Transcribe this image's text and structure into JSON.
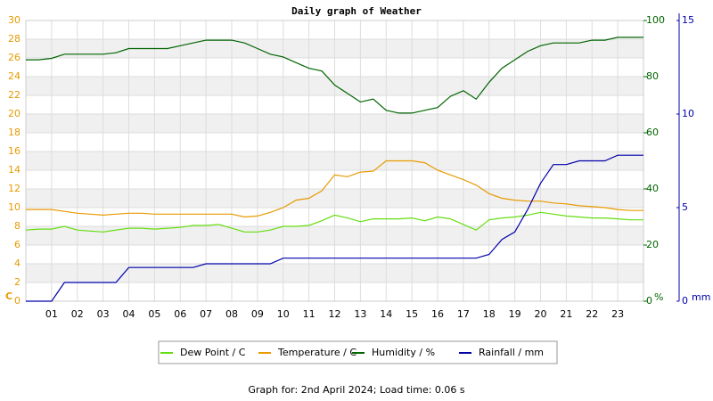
{
  "chart_data": {
    "type": "line",
    "title": "Daily graph of Weather",
    "footer": "Graph for: 2nd April 2024; Load time: 0.06 s",
    "x": [
      0,
      0.5,
      1,
      1.5,
      2,
      2.5,
      3,
      3.5,
      4,
      4.5,
      5,
      5.5,
      6,
      6.5,
      7,
      7.5,
      8,
      8.5,
      9,
      9.5,
      10,
      10.5,
      11,
      11.5,
      12,
      12.5,
      13,
      13.5,
      14,
      14.5,
      15,
      15.5,
      16,
      16.5,
      17,
      17.5,
      18,
      18.5,
      19,
      19.5,
      20,
      20.5,
      21,
      21.5,
      22,
      22.5,
      23,
      23.5,
      24
    ],
    "xlim": [
      0,
      24
    ],
    "xticks": [
      {
        "value": 1,
        "label": "01"
      },
      {
        "value": 2,
        "label": "02"
      },
      {
        "value": 3,
        "label": "03"
      },
      {
        "value": 4,
        "label": "04"
      },
      {
        "value": 5,
        "label": "05"
      },
      {
        "value": 6,
        "label": "06"
      },
      {
        "value": 7,
        "label": "07"
      },
      {
        "value": 8,
        "label": "08"
      },
      {
        "value": 9,
        "label": "09"
      },
      10,
      11,
      12,
      13,
      14,
      15,
      16,
      17,
      18,
      19,
      20,
      21,
      22,
      23
    ],
    "ylim": [
      0,
      30
    ],
    "yticks": [
      0,
      2,
      4,
      6,
      8,
      10,
      12,
      14,
      16,
      18,
      20,
      22,
      24,
      26,
      28,
      30
    ],
    "ylabel": "C",
    "y2lim": [
      0,
      100
    ],
    "y2ticks": [
      0,
      20,
      40,
      60,
      80,
      100
    ],
    "y2label": "%",
    "y3lim": [
      0,
      15
    ],
    "y3ticks": [
      0,
      5,
      10,
      15
    ],
    "y3label": "mm",
    "grid": true,
    "series": [
      {
        "name": "Dew Point / C",
        "color": "#66dd11",
        "axis": "y",
        "values": [
          7.6,
          7.7,
          7.7,
          8.0,
          7.6,
          7.5,
          7.4,
          7.6,
          7.8,
          7.8,
          7.7,
          7.8,
          7.9,
          8.1,
          8.1,
          8.2,
          7.8,
          7.4,
          7.4,
          7.6,
          8.0,
          8.0,
          8.1,
          8.6,
          9.2,
          8.9,
          8.5,
          8.8,
          8.8,
          8.8,
          8.9,
          8.6,
          9.0,
          8.8,
          8.2,
          7.6,
          8.7,
          8.9,
          9.0,
          9.2,
          9.5,
          9.3,
          9.1,
          9.0,
          8.9,
          8.9,
          8.8,
          8.7,
          8.7
        ]
      },
      {
        "name": "Temperature / C",
        "color": "#e89a00",
        "axis": "y",
        "values": [
          9.8,
          9.8,
          9.8,
          9.6,
          9.4,
          9.3,
          9.2,
          9.3,
          9.4,
          9.4,
          9.3,
          9.3,
          9.3,
          9.3,
          9.3,
          9.3,
          9.3,
          9.0,
          9.1,
          9.5,
          10.0,
          10.8,
          11.0,
          11.8,
          13.5,
          13.3,
          13.8,
          13.9,
          15.0,
          15.0,
          15.0,
          14.8,
          14.0,
          13.5,
          13.0,
          12.4,
          11.5,
          11.0,
          10.8,
          10.7,
          10.7,
          10.5,
          10.4,
          10.2,
          10.1,
          10.0,
          9.8,
          9.7,
          9.7
        ]
      },
      {
        "name": "Humidity / %",
        "color": "#006400",
        "axis": "y2",
        "values": [
          86,
          86,
          86.5,
          88,
          88,
          88,
          88,
          88.5,
          90,
          90,
          90,
          90,
          91,
          92,
          93,
          93,
          93,
          92,
          90,
          88,
          87,
          85,
          83,
          82,
          77,
          74,
          71,
          72,
          68,
          67,
          67,
          68,
          69,
          73,
          75,
          72,
          78,
          83,
          86,
          89,
          91,
          92,
          92,
          92,
          93,
          93,
          94,
          94,
          94
        ]
      },
      {
        "name": "Rainfall / mm",
        "color": "#0000aa",
        "axis": "y3",
        "values": [
          0,
          0,
          0,
          1.0,
          1.0,
          1.0,
          1.0,
          1.0,
          1.8,
          1.8,
          1.8,
          1.8,
          1.8,
          1.8,
          2.0,
          2.0,
          2.0,
          2.0,
          2.0,
          2.0,
          2.3,
          2.3,
          2.3,
          2.3,
          2.3,
          2.3,
          2.3,
          2.3,
          2.3,
          2.3,
          2.3,
          2.3,
          2.3,
          2.3,
          2.3,
          2.3,
          2.5,
          3.3,
          3.7,
          4.9,
          6.3,
          7.3,
          7.3,
          7.5,
          7.5,
          7.5,
          7.8,
          7.8,
          7.8
        ]
      }
    ]
  }
}
